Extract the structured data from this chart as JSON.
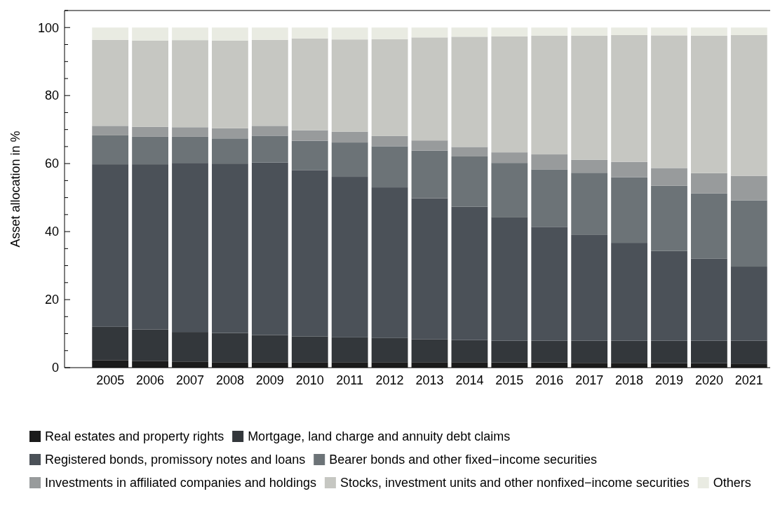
{
  "chart_data": {
    "type": "bar",
    "stacked": true,
    "ylabel": "Asset allocation in %",
    "categories": [
      "2005",
      "2006",
      "2007",
      "2008",
      "2009",
      "2010",
      "2011",
      "2012",
      "2013",
      "2014",
      "2015",
      "2016",
      "2017",
      "2018",
      "2019",
      "2020",
      "2021"
    ],
    "ylim": [
      0,
      105
    ],
    "yticks": [
      0,
      {
        "value": 5,
        "label": null
      },
      20,
      {
        "value": 10,
        "label": null
      },
      {
        "value": 15,
        "label": null
      },
      {
        "value": 25,
        "label": null
      },
      {
        "value": 30,
        "label": null
      },
      {
        "value": 35,
        "label": null
      },
      40,
      {
        "value": 45,
        "label": null
      },
      {
        "value": 50,
        "label": null
      },
      {
        "value": 55,
        "label": null
      },
      60,
      {
        "value": 65,
        "label": null
      },
      {
        "value": 70,
        "label": null
      },
      {
        "value": 75,
        "label": null
      },
      80,
      {
        "value": 85,
        "label": null
      },
      {
        "value": 90,
        "label": null
      },
      {
        "value": 95,
        "label": null
      },
      100,
      {
        "value": 105,
        "label": null
      }
    ],
    "grid": false,
    "legend": "bottom",
    "series": [
      {
        "name": "Real estates and property rights",
        "color": "#1b1b1b",
        "values": [
          2.2,
          2.0,
          1.8,
          1.6,
          1.6,
          1.6,
          1.6,
          1.6,
          1.6,
          1.6,
          1.5,
          1.5,
          1.4,
          1.4,
          1.3,
          1.3,
          1.2
        ]
      },
      {
        "name": "Mortgage, land charge and annuity debt claims",
        "color": "#33373b",
        "values": [
          9.8,
          9.2,
          8.7,
          8.6,
          8.0,
          7.6,
          7.3,
          7.1,
          6.7,
          6.5,
          6.4,
          6.4,
          6.5,
          6.5,
          6.6,
          6.6,
          6.7
        ]
      },
      {
        "name": "Registered bonds, promissory notes and loans",
        "color": "#4b5158",
        "values": [
          47.8,
          48.6,
          49.7,
          49.8,
          50.7,
          48.9,
          47.2,
          44.3,
          41.5,
          39.2,
          36.4,
          33.5,
          31.1,
          28.8,
          26.4,
          24.2,
          21.8
        ]
      },
      {
        "name": "Bearer bonds and other fixed−income securities",
        "color": "#6c7377",
        "values": [
          8.5,
          8.1,
          7.7,
          7.4,
          7.9,
          8.6,
          10.1,
          12.1,
          14.0,
          14.8,
          15.9,
          16.9,
          18.3,
          19.3,
          19.2,
          19.1,
          19.5
        ]
      },
      {
        "name": "Investments in affiliated companies and holdings",
        "color": "#989b9c",
        "values": [
          2.8,
          2.9,
          2.8,
          3.0,
          2.9,
          3.1,
          3.2,
          3.0,
          3.0,
          2.8,
          3.1,
          4.4,
          3.8,
          4.5,
          5.2,
          6.0,
          7.2
        ]
      },
      {
        "name": "Stocks, investment units and other nonfixed−income securities",
        "color": "#c6c7c2",
        "values": [
          25.3,
          25.4,
          25.6,
          25.8,
          25.3,
          27.0,
          27.1,
          28.5,
          30.3,
          32.4,
          34.1,
          34.9,
          36.5,
          37.3,
          39.0,
          40.4,
          41.4
        ]
      },
      {
        "name": "Others",
        "color": "#e9ebe2",
        "values": [
          3.6,
          3.8,
          3.7,
          3.8,
          3.6,
          3.2,
          3.5,
          3.4,
          2.9,
          2.7,
          2.6,
          2.4,
          2.4,
          2.2,
          2.3,
          2.4,
          2.2
        ]
      }
    ]
  }
}
